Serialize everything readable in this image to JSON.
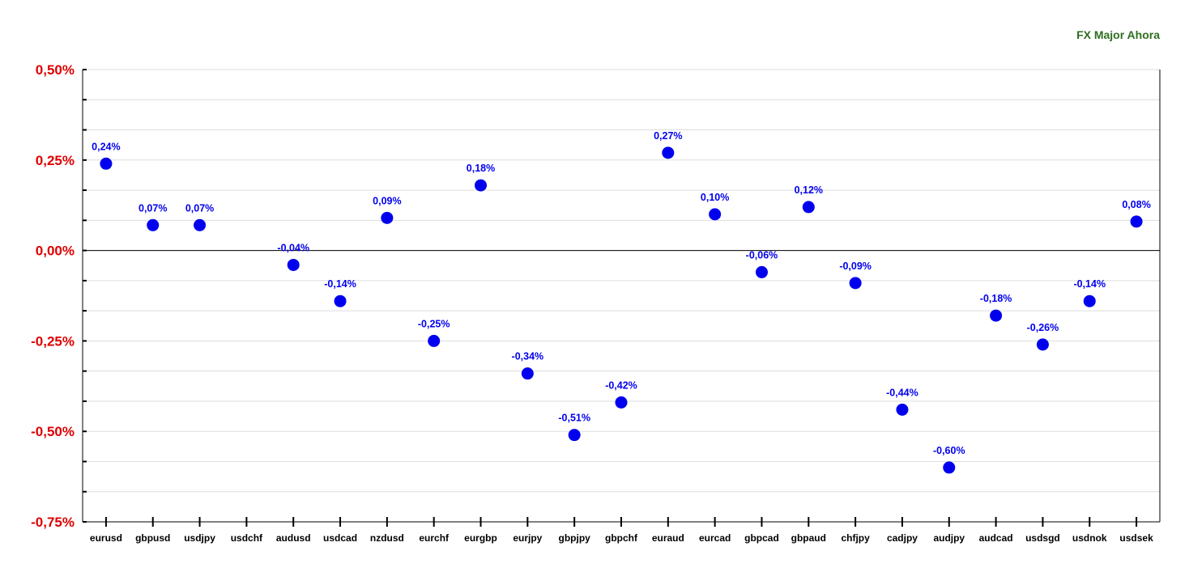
{
  "chart_data": {
    "type": "scatter",
    "title": "FX Major Ahora",
    "categories": [
      "eurusd",
      "gbpusd",
      "usdjpy",
      "usdchf",
      "audusd",
      "usdcad",
      "nzdusd",
      "eurchf",
      "eurgbp",
      "eurjpy",
      "gbpjpy",
      "gbpchf",
      "euraud",
      "eurcad",
      "gbpcad",
      "gbpaud",
      "chfjpy",
      "cadjpy",
      "audjpy",
      "audcad",
      "usdsgd",
      "usdnok",
      "usdsek"
    ],
    "values": [
      0.24,
      0.07,
      0.07,
      null,
      -0.04,
      -0.14,
      0.09,
      -0.25,
      0.18,
      -0.34,
      -0.51,
      -0.42,
      0.27,
      0.1,
      -0.06,
      0.12,
      -0.09,
      -0.44,
      -0.6,
      -0.18,
      -0.26,
      -0.14,
      0.08
    ],
    "data_labels": [
      "0,24%",
      "0,07%",
      "0,07%",
      "",
      "-0,04%",
      "-0,14%",
      "0,09%",
      "-0,25%",
      "0,18%",
      "-0,34%",
      "-0,51%",
      "-0,42%",
      "0,27%",
      "0,10%",
      "-0,06%",
      "0,12%",
      "-0,09%",
      "-0,44%",
      "-0,60%",
      "-0,18%",
      "-0,26%",
      "-0,14%",
      "0,08%"
    ],
    "ylim": [
      -0.75,
      0.5
    ],
    "yticks": [
      0.5,
      0.25,
      0.0,
      -0.25,
      -0.5,
      -0.75
    ],
    "ytick_labels": [
      "0,50%",
      "0,25%",
      "0,00%",
      "-0,25%",
      "-0,50%",
      "-0,75%"
    ],
    "minor_step": 0.08333,
    "xlabel": "",
    "ylabel": "",
    "grid": true,
    "colors": {
      "marker": "#0000ee",
      "data_label": "#0000ee",
      "ytick": "#dd0000",
      "title": "#2e6e1f",
      "grid": "#dddddd",
      "zero_line": "#000000"
    }
  }
}
